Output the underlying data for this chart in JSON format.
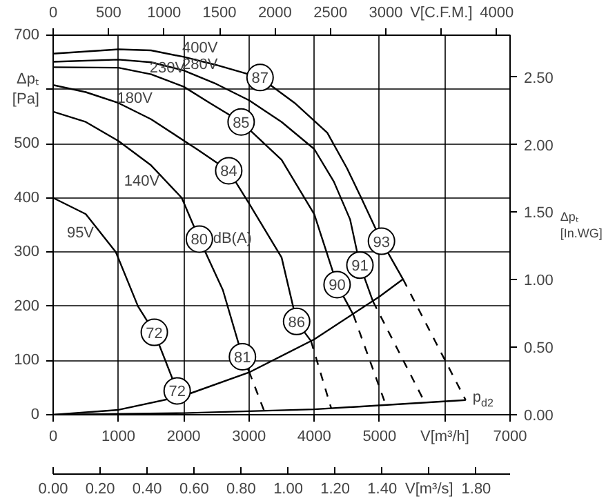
{
  "chart_data": [
    {
      "type": "line",
      "xlim": [
        0,
        7000
      ],
      "ylim": [
        0,
        700
      ],
      "x2lim": [
        0,
        4120
      ],
      "y2lim": [
        0,
        2.81
      ],
      "xticks": [
        0,
        1000,
        2000,
        3000,
        4000,
        5000,
        {
          "value": 6000,
          "label": "V[m³/h]"
        },
        7000
      ],
      "yticks": [
        0,
        100,
        200,
        300,
        400,
        500,
        {
          "value": 600,
          "label": null
        },
        700
      ],
      "x2ticks": [
        0,
        500,
        1000,
        1500,
        2000,
        2500,
        3000,
        {
          "value": 3500,
          "label": "V[C.F.M.]"
        },
        4000
      ],
      "y2ticks": [
        {
          "value": 0,
          "label": "0.00"
        },
        {
          "value": 0.5,
          "label": "0.50"
        },
        {
          "value": 1.0,
          "label": "1.00"
        },
        {
          "value": 1.5,
          "label": "1.50"
        },
        {
          "value": 2.0,
          "label": "2.00"
        },
        {
          "value": 2.5,
          "label": "2.50"
        }
      ],
      "ylabel": "Δpₜ [Pa]",
      "y2label": "Δpₜ [In.WG]",
      "grid": true,
      "series": [
        {
          "name": "400V",
          "color": "#000000",
          "x": [
            0,
            1000,
            1500,
            2000,
            2500,
            3170,
            3700,
            4200,
            4500,
            4720,
            5030,
            5360
          ],
          "values": [
            666,
            674,
            672,
            660,
            645,
            622,
            575,
            520,
            455,
            400,
            320,
            250
          ]
        },
        {
          "name": "280V",
          "color": "#000000",
          "x": [
            0,
            1000,
            1500,
            2000,
            2500,
            3000,
            3500,
            4000,
            4300,
            4550,
            4700,
            4900
          ],
          "values": [
            651,
            655,
            650,
            635,
            610,
            580,
            540,
            490,
            430,
            360,
            276,
            209
          ]
        },
        {
          "name": "230V",
          "color": "#000000",
          "x": [
            0,
            1000,
            1500,
            2000,
            2400,
            2880,
            3500,
            4000,
            4350,
            4600
          ],
          "values": [
            641,
            640,
            628,
            605,
            575,
            540,
            470,
            370,
            240,
            184
          ]
        },
        {
          "name": "180V",
          "color": "#000000",
          "x": [
            0,
            500,
            1000,
            1500,
            2200,
            2690,
            3000,
            3500,
            3730,
            3950
          ],
          "values": [
            608,
            595,
            575,
            545,
            490,
            450,
            390,
            290,
            172,
            136
          ]
        },
        {
          "name": "140V",
          "color": "#000000",
          "x": [
            0,
            500,
            1000,
            1500,
            1970,
            2240,
            2600,
            2900,
            3000
          ],
          "values": [
            559,
            540,
            505,
            460,
            400,
            324,
            230,
            107,
            80
          ]
        },
        {
          "name": "95V",
          "color": "#000000",
          "x": [
            0,
            500,
            960,
            1300,
            1550,
            1900,
            1950
          ],
          "values": [
            400,
            370,
            300,
            200,
            152,
            44,
            33
          ]
        },
        {
          "color": "#000000",
          "x": [
            0,
            1000,
            2000,
            3000,
            4000,
            5000,
            5360
          ],
          "values": [
            0,
            9,
            35,
            78,
            139,
            218,
            250
          ]
        },
        {
          "name": "p$_{d2}$",
          "color": "#000000",
          "x": [
            0,
            2000,
            4000,
            6320
          ],
          "values": [
            0,
            3,
            10,
            27
          ]
        },
        {
          "color": "#000000",
          "line_style": "dashed",
          "x": [
            5360,
            6320
          ],
          "values": [
            250,
            27
          ]
        },
        {
          "color": "#000000",
          "line_style": "dashed",
          "x": [
            4900,
            5710
          ],
          "values": [
            209,
            19
          ]
        },
        {
          "color": "#000000",
          "line_style": "dashed",
          "x": [
            4600,
            5100
          ],
          "values": [
            184,
            17
          ]
        },
        {
          "color": "#000000",
          "line_style": "dashed",
          "x": [
            3950,
            4260
          ],
          "values": [
            136,
            12
          ]
        },
        {
          "color": "#000000",
          "line_style": "dashed",
          "x": [
            3000,
            3230
          ],
          "values": [
            80,
            8
          ]
        }
      ],
      "annotations": [
        {
          "text": "87",
          "x": 3170,
          "y": 622
        },
        {
          "text": "85",
          "x": 2880,
          "y": 540
        },
        {
          "text": "84",
          "x": 2690,
          "y": 450
        },
        {
          "text": "80",
          "x": 2240,
          "y": 324
        },
        {
          "text": "dB(A)",
          "x": 2450,
          "y": 324
        },
        {
          "text": "72",
          "x": 1550,
          "y": 152
        },
        {
          "text": "93",
          "x": 5030,
          "y": 320
        },
        {
          "text": "91",
          "x": 4700,
          "y": 276
        },
        {
          "text": "90",
          "x": 4350,
          "y": 240
        },
        {
          "text": "86",
          "x": 3730,
          "y": 172
        },
        {
          "text": "81",
          "x": 2900,
          "y": 107
        },
        {
          "text": "72",
          "x": 1900,
          "y": 44
        }
      ]
    },
    {
      "type": "other",
      "annotations": [
        "0.00",
        "0.20",
        "0.40",
        "0.60",
        "0.80",
        "1.00",
        "1.20",
        "1.40",
        "V[m³/s]",
        "1.80"
      ]
    }
  ]
}
